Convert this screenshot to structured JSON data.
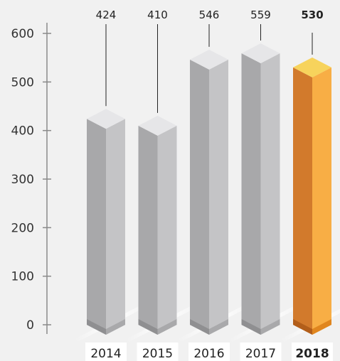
{
  "chart_data": {
    "type": "bar",
    "style": "3d-columns",
    "categories": [
      "2014",
      "2015",
      "2016",
      "2017",
      "2018"
    ],
    "values": [
      424,
      410,
      546,
      559,
      530
    ],
    "value_labels": [
      "424",
      "410",
      "546",
      "559",
      "530"
    ],
    "highlight_index": 4,
    "ylim": [
      0,
      600
    ],
    "y_ticks": [
      "0",
      "100",
      "200",
      "300",
      "400",
      "500",
      "600"
    ],
    "grid": false,
    "legend": "none",
    "title": "",
    "xlabel": "",
    "ylabel": ""
  },
  "colors": {
    "background": "#f1f1f1",
    "axis": "#8a8a8a",
    "grey_front": "#a8a8aa",
    "grey_side": "#c4c4c6",
    "grey_top": "#e6e6e8",
    "highlight_front": "#d27a2c",
    "highlight_side": "#f8ae45",
    "highlight_top": "#f7d35c",
    "label_box": "#ffffff"
  }
}
